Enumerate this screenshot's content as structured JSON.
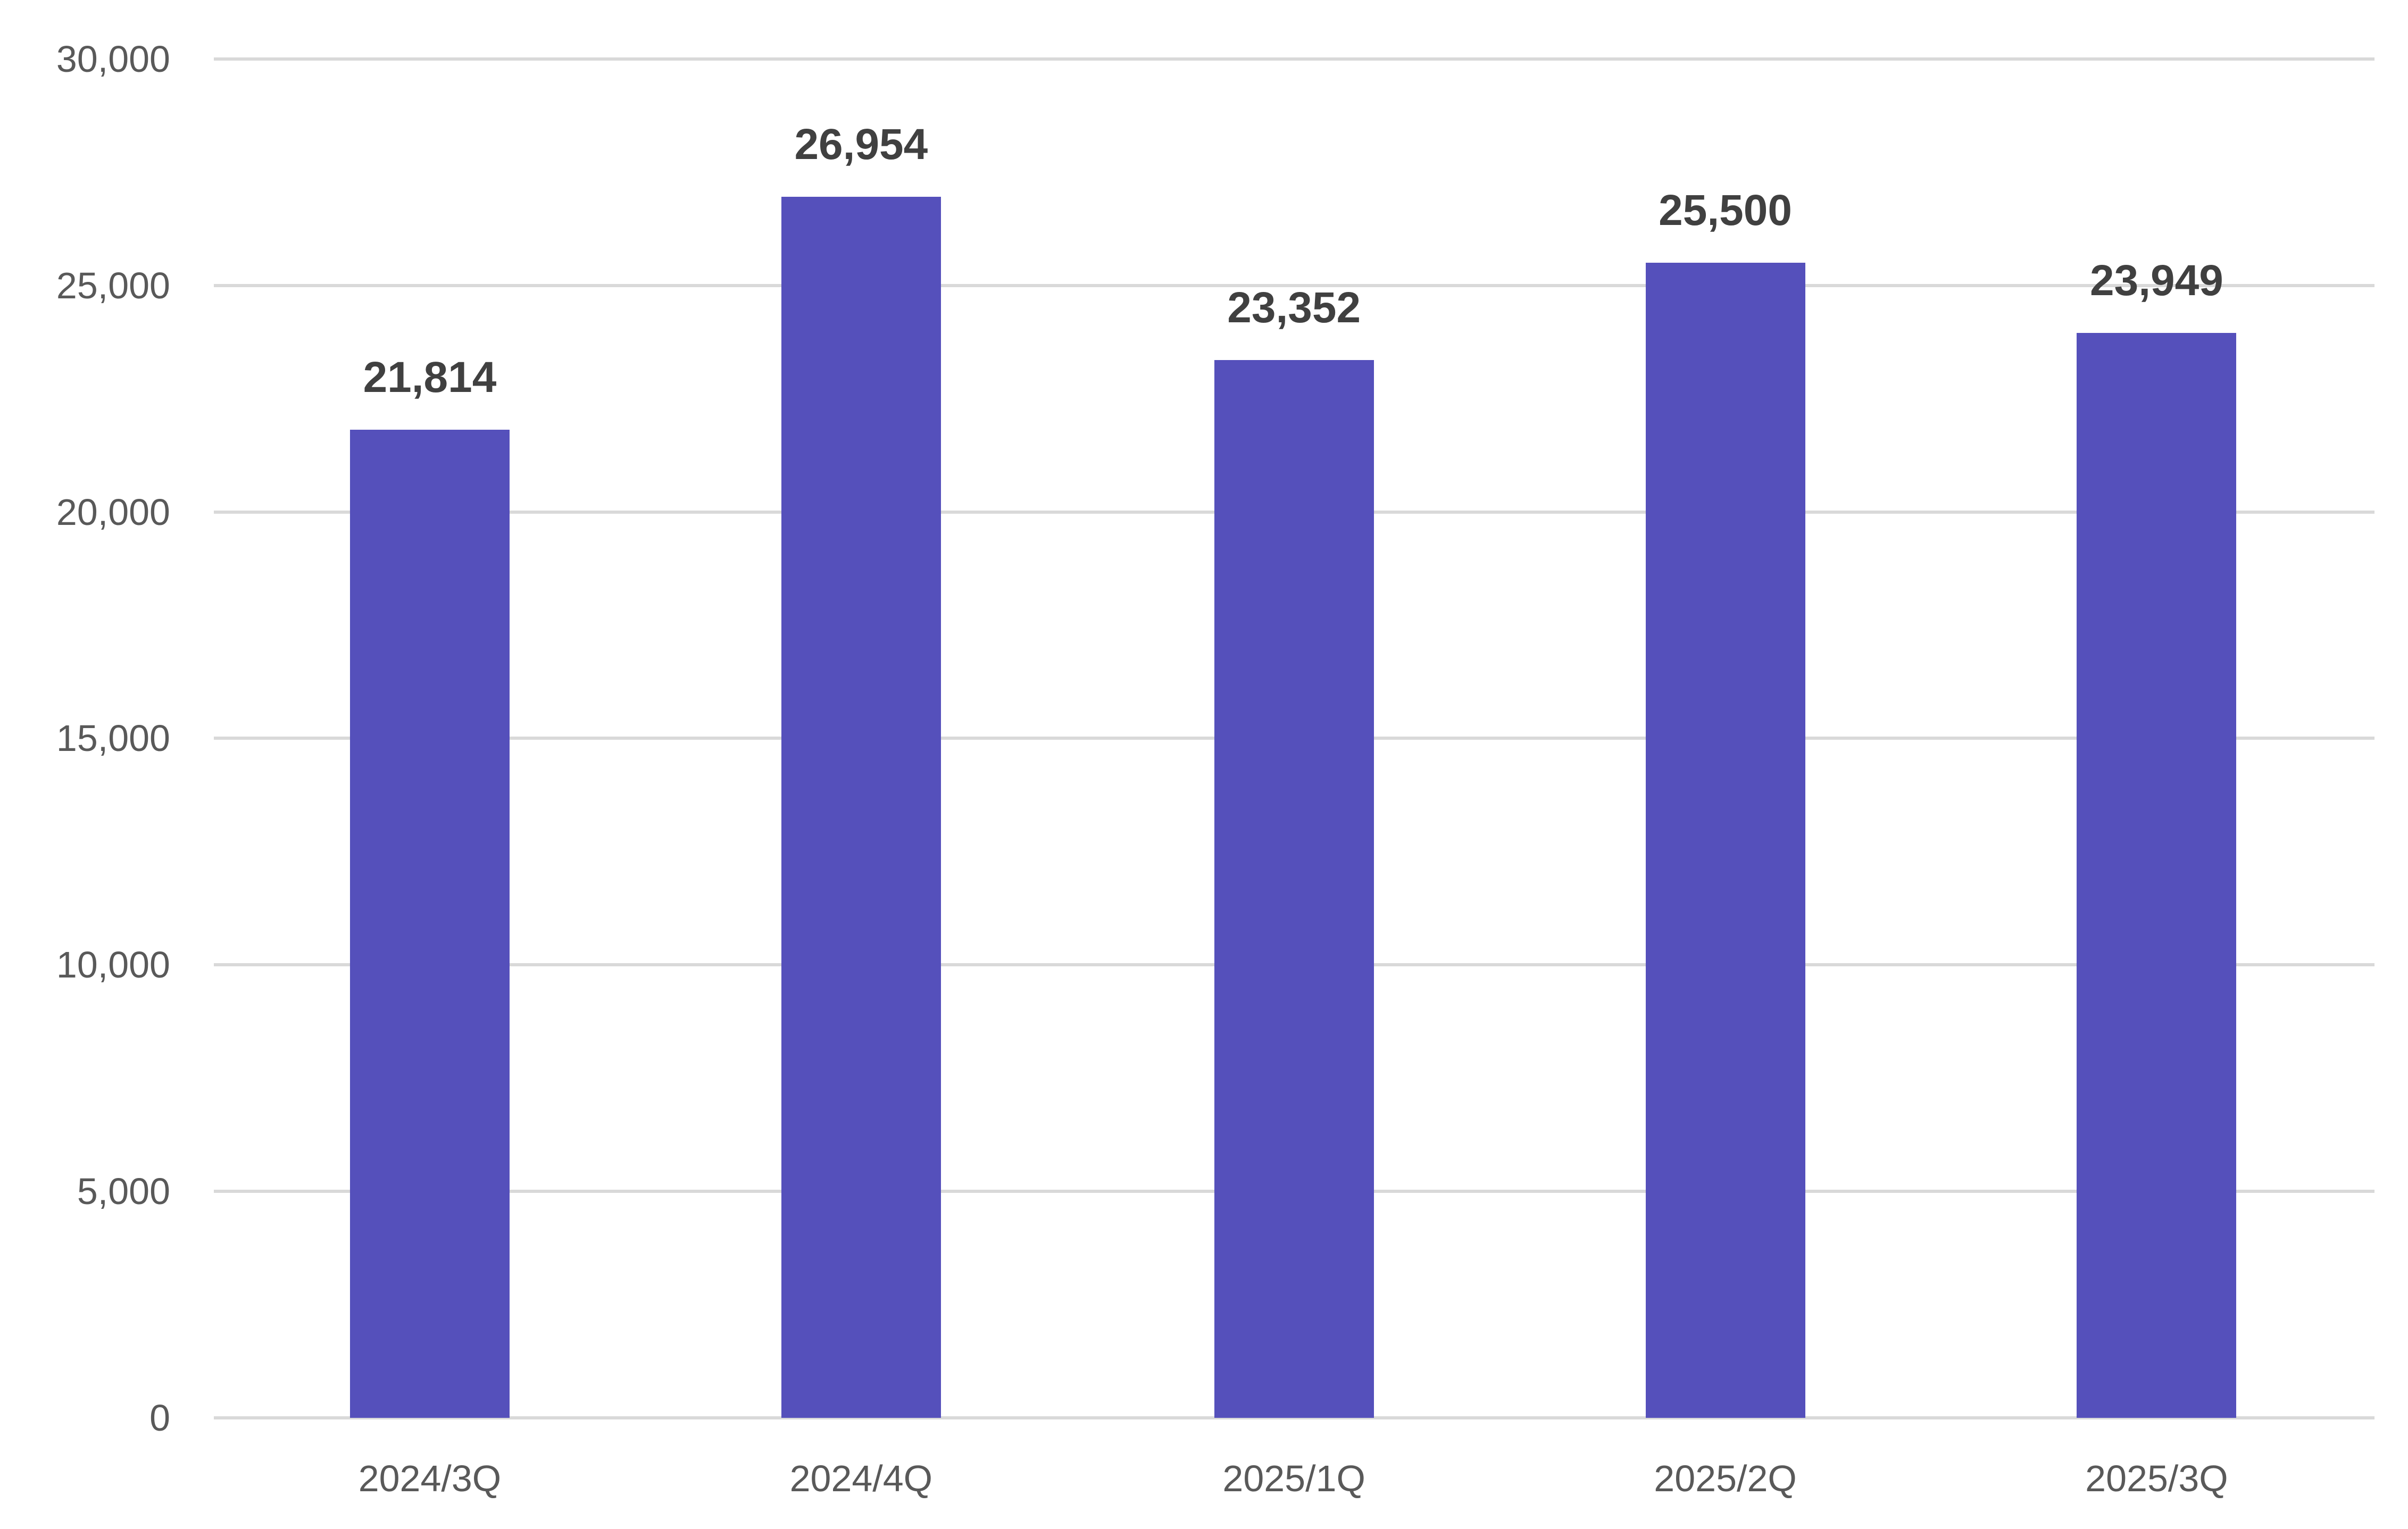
{
  "chart_data": {
    "type": "bar",
    "title": "",
    "xlabel": "",
    "ylabel": "",
    "categories": [
      "2024/3Q",
      "2024/4Q",
      "2025/1Q",
      "2025/2Q",
      "2025/3Q"
    ],
    "values": [
      21814,
      26954,
      23352,
      25500,
      23949
    ],
    "data_labels": [
      "21,814",
      "26,954",
      "23,352",
      "25,500",
      "23,949"
    ],
    "ylim": [
      0,
      30000
    ],
    "yticks": [
      0,
      5000,
      10000,
      15000,
      20000,
      25000,
      30000
    ],
    "ytick_labels": [
      "0",
      "5,000",
      "10,000",
      "15,000",
      "20,000",
      "25,000",
      "30,000"
    ],
    "grid": true,
    "legend": null,
    "bar_color": "#5550bb",
    "gridline_color": "#d9d9d9",
    "label_color": "#404040",
    "tick_color": "#595959"
  }
}
